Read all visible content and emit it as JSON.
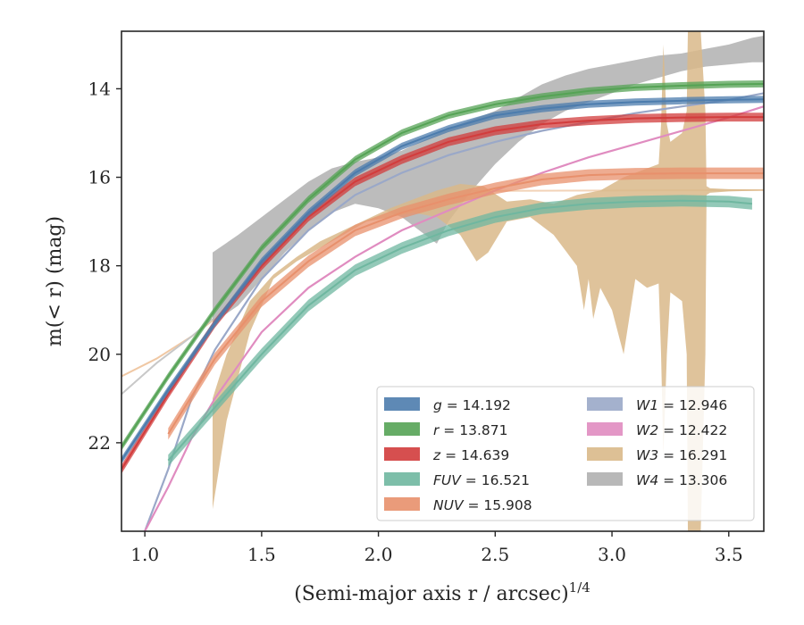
{
  "chart_data": {
    "type": "area",
    "xlabel": "(Semi-major axis r / arcsec)",
    "xlabel_sup": "1/4",
    "ylabel": "m(< r) (mag)",
    "xlim": [
      0.9,
      3.65
    ],
    "ylim": [
      24.0,
      12.7
    ],
    "y_inverted": true,
    "xticks": [
      1.0,
      1.5,
      2.0,
      2.5,
      3.0,
      3.5
    ],
    "xtick_labels": [
      "1.0",
      "1.5",
      "2.0",
      "2.5",
      "3.0",
      "3.5"
    ],
    "yticks": [
      14,
      16,
      18,
      20,
      22
    ],
    "ytick_labels": [
      "14",
      "16",
      "18",
      "20",
      "22"
    ],
    "grid": false,
    "legend_position": "lower-right",
    "legend_columns": 2,
    "series": [
      {
        "name": "g",
        "value": "14.192",
        "color": "#4c7cad",
        "kind": "band",
        "x": [
          0.9,
          1.1,
          1.3,
          1.5,
          1.7,
          1.9,
          2.1,
          2.3,
          2.5,
          2.7,
          2.9,
          3.1,
          3.3,
          3.5,
          3.65
        ],
        "y": [
          22.4,
          20.8,
          19.3,
          17.9,
          16.8,
          15.9,
          15.3,
          14.9,
          14.6,
          14.45,
          14.35,
          14.3,
          14.27,
          14.25,
          14.24
        ],
        "halfwidth": 0.08
      },
      {
        "name": "r",
        "value": "13.871",
        "color": "#55a355",
        "kind": "band",
        "x": [
          0.9,
          1.1,
          1.3,
          1.5,
          1.7,
          1.9,
          2.1,
          2.3,
          2.5,
          2.7,
          2.9,
          3.1,
          3.3,
          3.5,
          3.65
        ],
        "y": [
          22.1,
          20.5,
          19.0,
          17.6,
          16.5,
          15.6,
          15.0,
          14.6,
          14.35,
          14.18,
          14.05,
          13.97,
          13.93,
          13.9,
          13.89
        ],
        "halfwidth": 0.08
      },
      {
        "name": "z",
        "value": "14.639",
        "color": "#d23c3c",
        "kind": "band",
        "x": [
          0.9,
          1.1,
          1.3,
          1.5,
          1.7,
          1.9,
          2.1,
          2.3,
          2.5,
          2.7,
          2.9,
          3.1,
          3.3,
          3.5,
          3.65
        ],
        "y": [
          22.6,
          20.9,
          19.3,
          18.0,
          16.9,
          16.1,
          15.6,
          15.2,
          14.95,
          14.8,
          14.72,
          14.67,
          14.65,
          14.64,
          14.64
        ],
        "halfwidth": 0.1
      },
      {
        "name": "FUV",
        "value": "16.521",
        "color": "#6fb7a0",
        "kind": "band",
        "x": [
          1.1,
          1.3,
          1.5,
          1.7,
          1.9,
          2.1,
          2.3,
          2.5,
          2.7,
          2.9,
          3.1,
          3.3,
          3.5,
          3.6
        ],
        "y": [
          22.4,
          21.2,
          20.0,
          18.9,
          18.1,
          17.6,
          17.2,
          16.9,
          16.7,
          16.6,
          16.55,
          16.53,
          16.55,
          16.6
        ],
        "halfwidth": 0.13
      },
      {
        "name": "NUV",
        "value": "15.908",
        "color": "#e8906c",
        "kind": "band",
        "x": [
          1.1,
          1.3,
          1.5,
          1.7,
          1.9,
          2.1,
          2.3,
          2.5,
          2.7,
          2.9,
          3.1,
          3.3,
          3.5,
          3.65
        ],
        "y": [
          21.8,
          20.1,
          18.8,
          17.9,
          17.2,
          16.8,
          16.5,
          16.25,
          16.05,
          15.95,
          15.92,
          15.91,
          15.91,
          15.91
        ],
        "halfwidth": 0.13
      },
      {
        "name": "W1",
        "value": "12.946",
        "color": "#9aa8c8",
        "kind": "line",
        "x": [
          1.0,
          1.1,
          1.2,
          1.3,
          1.5,
          1.7,
          1.9,
          2.1,
          2.3,
          2.5,
          2.7,
          2.9,
          3.1,
          3.3,
          3.5,
          3.65
        ],
        "y": [
          24.0,
          22.6,
          21.0,
          19.9,
          18.3,
          17.2,
          16.4,
          15.9,
          15.5,
          15.2,
          14.95,
          14.75,
          14.55,
          14.4,
          14.25,
          14.1
        ]
      },
      {
        "name": "W2",
        "value": "12.422",
        "color": "#e08cc0",
        "kind": "line",
        "x": [
          1.0,
          1.1,
          1.2,
          1.3,
          1.5,
          1.7,
          1.9,
          2.1,
          2.3,
          2.5,
          2.7,
          2.9,
          3.1,
          3.3,
          3.5,
          3.65
        ],
        "y": [
          24.0,
          23.0,
          21.9,
          21.0,
          19.5,
          18.5,
          17.8,
          17.2,
          16.75,
          16.3,
          15.9,
          15.55,
          15.25,
          14.95,
          14.65,
          14.4
        ]
      },
      {
        "name": "W3",
        "value": "16.291",
        "color": "#d9b98a",
        "kind": "band_custom",
        "top_x": [
          1.29,
          1.35,
          1.45,
          1.55,
          1.65,
          1.75,
          1.85,
          1.95,
          2.05,
          2.15,
          2.25,
          2.35,
          2.45,
          2.55,
          2.65,
          2.75,
          2.85,
          2.95,
          3.05,
          3.15,
          3.2,
          3.21,
          3.22,
          3.235,
          3.25,
          3.3,
          3.32,
          3.325,
          3.35,
          3.38,
          3.4,
          3.405,
          3.42,
          3.5,
          3.65
        ],
        "top_y": [
          21.0,
          20.0,
          18.8,
          18.2,
          17.8,
          17.45,
          17.2,
          16.95,
          16.7,
          16.5,
          16.3,
          16.15,
          16.2,
          16.55,
          16.5,
          16.6,
          16.4,
          16.3,
          16.0,
          15.8,
          15.7,
          14.8,
          13.0,
          14.8,
          15.2,
          15.0,
          14.5,
          12.7,
          12.7,
          12.7,
          14.5,
          16.2,
          16.25,
          16.27,
          16.28
        ],
        "bottom_x": [
          1.29,
          1.35,
          1.45,
          1.55,
          1.65,
          1.75,
          1.85,
          1.95,
          2.05,
          2.15,
          2.25,
          2.35,
          2.42,
          2.47,
          2.55,
          2.65,
          2.75,
          2.85,
          2.88,
          2.9,
          2.92,
          2.95,
          3.0,
          3.05,
          3.1,
          3.15,
          3.2,
          3.21,
          3.22,
          3.235,
          3.25,
          3.3,
          3.32,
          3.325,
          3.35,
          3.38,
          3.4,
          3.405,
          3.42,
          3.5,
          3.65
        ],
        "bottom_y": [
          23.5,
          21.5,
          19.5,
          18.3,
          17.9,
          17.6,
          17.3,
          17.0,
          16.9,
          16.8,
          16.9,
          17.3,
          17.9,
          17.7,
          17.0,
          16.9,
          17.3,
          18.0,
          19.0,
          18.3,
          19.2,
          18.5,
          19.0,
          20.0,
          18.3,
          18.5,
          18.4,
          20.0,
          22.3,
          20.0,
          18.6,
          18.8,
          20.0,
          24.0,
          24.0,
          24.0,
          20.0,
          16.4,
          16.35,
          16.32,
          16.3
        ]
      },
      {
        "name": "W4",
        "value": "13.306",
        "color": "#b0b0b0",
        "kind": "band_custom",
        "top_x": [
          1.29,
          1.4,
          1.5,
          1.6,
          1.7,
          1.8,
          1.9,
          2.0,
          2.1,
          2.2,
          2.3,
          2.4,
          2.5,
          2.6,
          2.7,
          2.8,
          2.9,
          3.0,
          3.1,
          3.2,
          3.3,
          3.4,
          3.5,
          3.6,
          3.65
        ],
        "top_y": [
          17.7,
          17.3,
          16.9,
          16.5,
          16.1,
          15.8,
          15.65,
          15.55,
          15.4,
          15.15,
          14.9,
          14.7,
          14.5,
          14.2,
          13.9,
          13.7,
          13.55,
          13.45,
          13.35,
          13.25,
          13.2,
          13.1,
          13.0,
          12.85,
          12.8
        ],
        "bottom_x": [
          1.29,
          1.4,
          1.5,
          1.6,
          1.7,
          1.8,
          1.9,
          2.0,
          2.1,
          2.2,
          2.25,
          2.3,
          2.4,
          2.5,
          2.6,
          2.7,
          2.8,
          2.9,
          3.0,
          3.1,
          3.2,
          3.3,
          3.4,
          3.5,
          3.6,
          3.65
        ],
        "bottom_y": [
          19.3,
          18.9,
          18.3,
          17.7,
          17.2,
          16.8,
          16.6,
          16.7,
          16.9,
          17.3,
          17.5,
          17.0,
          16.3,
          15.7,
          15.2,
          14.8,
          14.5,
          14.3,
          14.1,
          13.9,
          13.75,
          13.6,
          13.5,
          13.45,
          13.4,
          13.4
        ]
      }
    ],
    "extra_lines": [
      {
        "color": "#f0c8a4",
        "x": [
          0.9,
          1.05,
          1.2,
          1.3
        ],
        "y": [
          20.5,
          20.1,
          19.6,
          19.2
        ],
        "width": 2
      },
      {
        "color": "#c8c8c8",
        "x": [
          0.9,
          1.05,
          1.2,
          1.29
        ],
        "y": [
          20.9,
          20.2,
          19.6,
          19.2
        ],
        "width": 2
      },
      {
        "color": "#f2d3b8",
        "x": [
          2.4,
          3.0,
          3.65
        ],
        "y": [
          16.31,
          16.3,
          16.29
        ],
        "width": 2
      }
    ]
  }
}
